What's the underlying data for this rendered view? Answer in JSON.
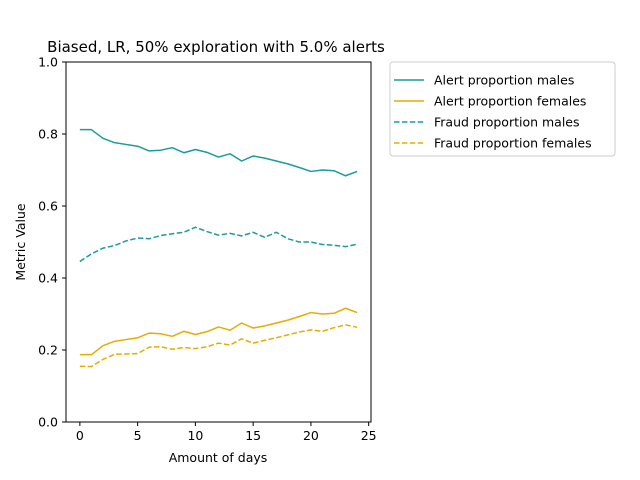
{
  "chart_data": {
    "type": "line",
    "title": "Biased, LR, 50% exploration with 5.0% alerts",
    "xlabel": "Amount of days",
    "ylabel": "Metric Value",
    "xlim": [
      -1.2,
      25.2
    ],
    "ylim": [
      0.0,
      1.0
    ],
    "xticks": [
      0,
      5,
      10,
      15,
      20,
      25
    ],
    "yticks": [
      0.0,
      0.2,
      0.4,
      0.6,
      0.8,
      1.0
    ],
    "ytick_labels": [
      "0.0",
      "0.2",
      "0.4",
      "0.6",
      "0.8",
      "1.0"
    ],
    "grid": false,
    "legend_position": "outside-top-right",
    "x": [
      0,
      1,
      2,
      3,
      4,
      5,
      6,
      7,
      8,
      9,
      10,
      11,
      12,
      13,
      14,
      15,
      16,
      17,
      18,
      19,
      20,
      21,
      22,
      23,
      24
    ],
    "series": [
      {
        "name": "Alert proportion males",
        "color": "#1a9c9c",
        "style": "solid",
        "values": [
          0.812,
          0.812,
          0.788,
          0.776,
          0.771,
          0.766,
          0.753,
          0.755,
          0.762,
          0.748,
          0.757,
          0.749,
          0.736,
          0.745,
          0.725,
          0.739,
          0.733,
          0.725,
          0.717,
          0.707,
          0.696,
          0.7,
          0.698,
          0.684,
          0.696
        ]
      },
      {
        "name": "Alert proportion females",
        "color": "#e6ac00",
        "style": "solid",
        "values": [
          0.187,
          0.187,
          0.212,
          0.224,
          0.229,
          0.234,
          0.247,
          0.245,
          0.238,
          0.252,
          0.243,
          0.251,
          0.264,
          0.255,
          0.275,
          0.261,
          0.267,
          0.275,
          0.283,
          0.293,
          0.304,
          0.3,
          0.302,
          0.316,
          0.304
        ]
      },
      {
        "name": "Fraud proportion males",
        "color": "#1a9c9c",
        "style": "dashed",
        "values": [
          0.446,
          0.467,
          0.483,
          0.49,
          0.503,
          0.511,
          0.509,
          0.518,
          0.523,
          0.527,
          0.541,
          0.529,
          0.519,
          0.524,
          0.517,
          0.527,
          0.513,
          0.527,
          0.509,
          0.5,
          0.5,
          0.493,
          0.491,
          0.487,
          0.494
        ]
      },
      {
        "name": "Fraud proportion females",
        "color": "#e6ac00",
        "style": "dashed",
        "values": [
          0.155,
          0.154,
          0.174,
          0.188,
          0.189,
          0.19,
          0.208,
          0.209,
          0.202,
          0.207,
          0.204,
          0.209,
          0.219,
          0.214,
          0.231,
          0.219,
          0.227,
          0.234,
          0.242,
          0.25,
          0.256,
          0.252,
          0.262,
          0.27,
          0.263
        ]
      }
    ]
  }
}
